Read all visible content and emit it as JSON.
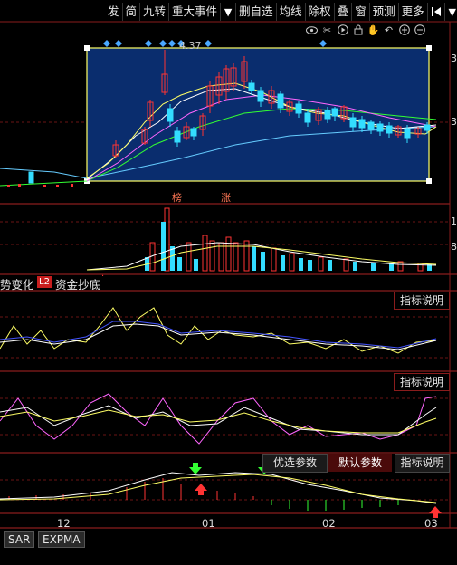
{
  "toolbar": {
    "items": [
      "发",
      "简",
      "九转",
      "重大事件",
      "删自选",
      "均线",
      "除权",
      "叠",
      "窗",
      "预测",
      "更多"
    ]
  },
  "tool_icons": [
    "eye-icon",
    "scissors-icon",
    "play-icon",
    "lock-icon",
    "hand-icon",
    "undo-icon",
    "zoom-in-icon",
    "zoom-out-icon"
  ],
  "main_chart": {
    "peak_label": "4.37",
    "markers": [
      "榜",
      "涨"
    ],
    "yaxis_labels": [
      "3",
      "3",
      "1",
      "8"
    ]
  },
  "indicator_tabs": {
    "left_text": "势变化",
    "l2_badge": "L2",
    "l2_label": "资金抄底",
    "corner_dot": "·"
  },
  "panel_buttons": {
    "indicator_desc": "指标说明",
    "optimize_params": "优选参数",
    "default_params": "默认参数"
  },
  "xaxis": {
    "labels": [
      "12",
      "01",
      "02",
      "03"
    ]
  },
  "bottom_tabs": [
    "SAR",
    "EXPMA"
  ],
  "colors": {
    "up": "#ff3333",
    "down": "#33ddff",
    "selection_bg": "#0a2d6e",
    "selection_border": "#ffff66",
    "grid": "#8a1c1c",
    "ma_yellow": "#ffff66",
    "ma_white": "#ffffff",
    "ma_pink": "#ff66ff",
    "ma_green": "#33ff33",
    "ma_cyan": "#66ccff"
  }
}
